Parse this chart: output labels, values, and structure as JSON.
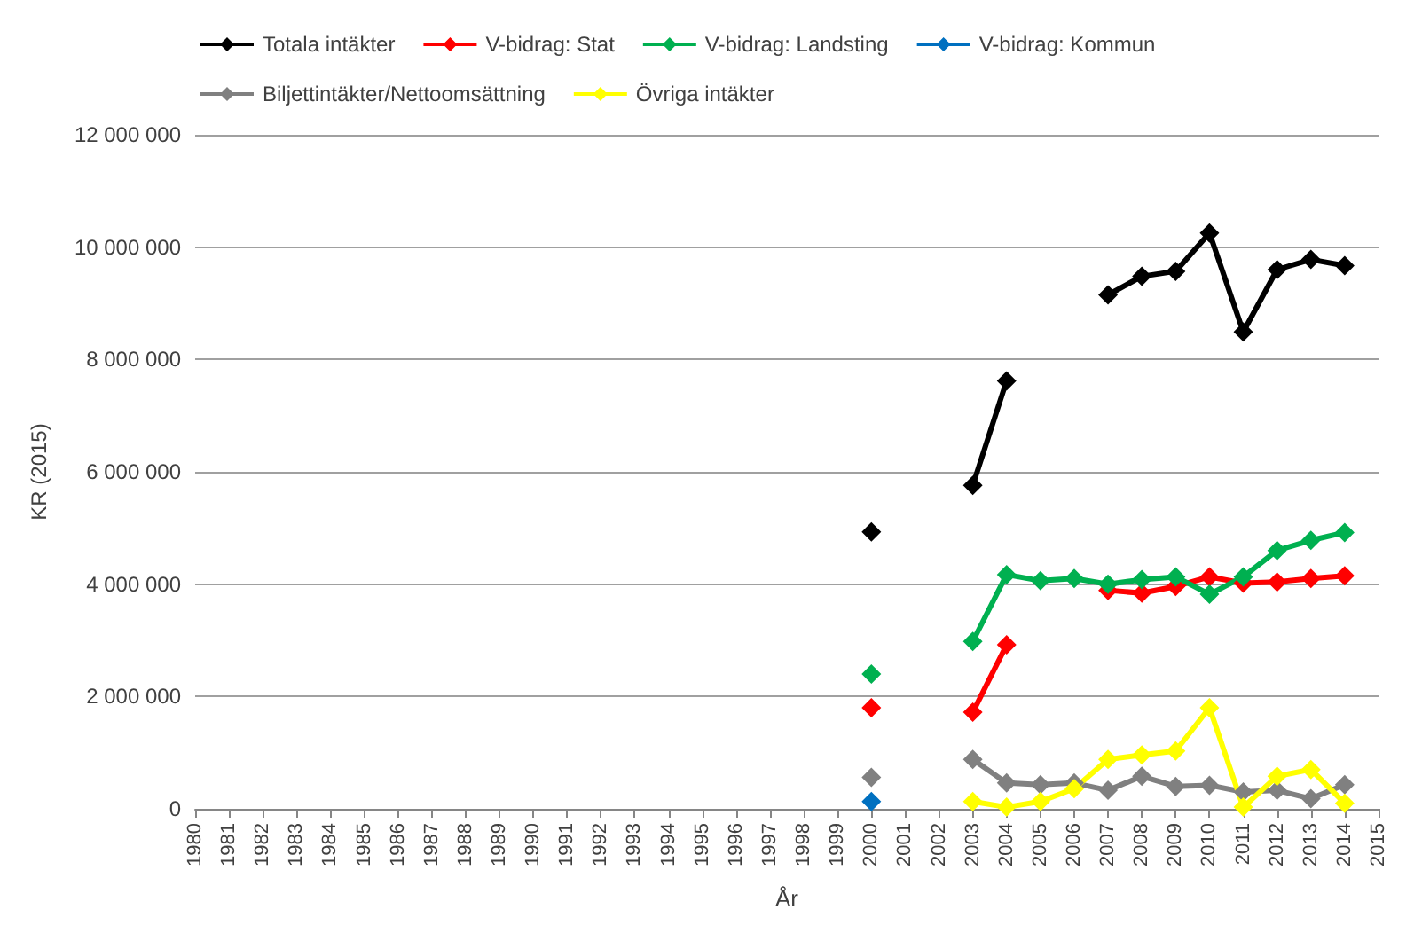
{
  "chart_data": {
    "type": "line",
    "xlabel": "År",
    "ylabel": "KR (2015)",
    "categories": [
      "1980",
      "1981",
      "1982",
      "1983",
      "1984",
      "1985",
      "1986",
      "1987",
      "1988",
      "1989",
      "1990",
      "1991",
      "1992",
      "1993",
      "1994",
      "1995",
      "1996",
      "1997",
      "1998",
      "1999",
      "2000",
      "2001",
      "2002",
      "2003",
      "2004",
      "2005",
      "2006",
      "2007",
      "2008",
      "2009",
      "2010",
      "2011",
      "2012",
      "2013",
      "2014",
      "2015"
    ],
    "series": [
      {
        "name": "Totala intäkter",
        "color": "#000000",
        "values": [
          null,
          null,
          null,
          null,
          null,
          null,
          null,
          null,
          null,
          null,
          null,
          null,
          null,
          null,
          null,
          null,
          null,
          null,
          null,
          null,
          4930000,
          null,
          null,
          5760000,
          7620000,
          null,
          null,
          9150000,
          9480000,
          9570000,
          10250000,
          8490000,
          9600000,
          9780000,
          9670000,
          null
        ]
      },
      {
        "name": "V-bidrag: Stat",
        "color": "#ff0000",
        "values": [
          null,
          null,
          null,
          null,
          null,
          null,
          null,
          null,
          null,
          null,
          null,
          null,
          null,
          null,
          null,
          null,
          null,
          null,
          null,
          null,
          1800000,
          null,
          null,
          1720000,
          2920000,
          null,
          null,
          3890000,
          3840000,
          3960000,
          4130000,
          4020000,
          4040000,
          4100000,
          4150000,
          null
        ]
      },
      {
        "name": "V-bidrag: Landsting",
        "color": "#00b050",
        "values": [
          null,
          null,
          null,
          null,
          null,
          null,
          null,
          null,
          null,
          null,
          null,
          null,
          null,
          null,
          null,
          null,
          null,
          null,
          null,
          null,
          2400000,
          null,
          null,
          2980000,
          4170000,
          4060000,
          4100000,
          4000000,
          4080000,
          4130000,
          3820000,
          4130000,
          4600000,
          4780000,
          4920000,
          null
        ]
      },
      {
        "name": "V-bidrag: Kommun",
        "color": "#0070c0",
        "values": [
          null,
          null,
          null,
          null,
          null,
          null,
          null,
          null,
          null,
          null,
          null,
          null,
          null,
          null,
          null,
          null,
          null,
          null,
          null,
          null,
          130000,
          null,
          null,
          null,
          null,
          null,
          null,
          null,
          null,
          null,
          null,
          null,
          null,
          null,
          null,
          null
        ]
      },
      {
        "name": "Biljettintäkter/Nettoomsättning",
        "color": "#808080",
        "values": [
          null,
          null,
          null,
          null,
          null,
          null,
          null,
          null,
          null,
          null,
          null,
          null,
          null,
          null,
          null,
          null,
          null,
          null,
          null,
          null,
          560000,
          null,
          null,
          880000,
          460000,
          430000,
          460000,
          330000,
          580000,
          400000,
          420000,
          300000,
          330000,
          180000,
          430000,
          null
        ]
      },
      {
        "name": "Övriga intäkter",
        "color": "#ffff00",
        "values": [
          null,
          null,
          null,
          null,
          null,
          null,
          null,
          null,
          null,
          null,
          null,
          null,
          null,
          null,
          null,
          null,
          null,
          null,
          null,
          null,
          null,
          null,
          null,
          130000,
          30000,
          130000,
          360000,
          880000,
          960000,
          1030000,
          1800000,
          30000,
          580000,
          700000,
          100000,
          null
        ]
      }
    ],
    "ylim": [
      0,
      12000000
    ],
    "yticks": [
      {
        "value": 0,
        "label": "0"
      },
      {
        "value": 2000000,
        "label": "2 000 000"
      },
      {
        "value": 4000000,
        "label": "4 000 000"
      },
      {
        "value": 6000000,
        "label": "6 000 000"
      },
      {
        "value": 8000000,
        "label": "8 000 000"
      },
      {
        "value": 10000000,
        "label": "10 000 000"
      },
      {
        "value": 12000000,
        "label": "12 000 000"
      }
    ],
    "grid": "y",
    "legend": "top",
    "marker": "diamond",
    "line_style": "solid"
  }
}
